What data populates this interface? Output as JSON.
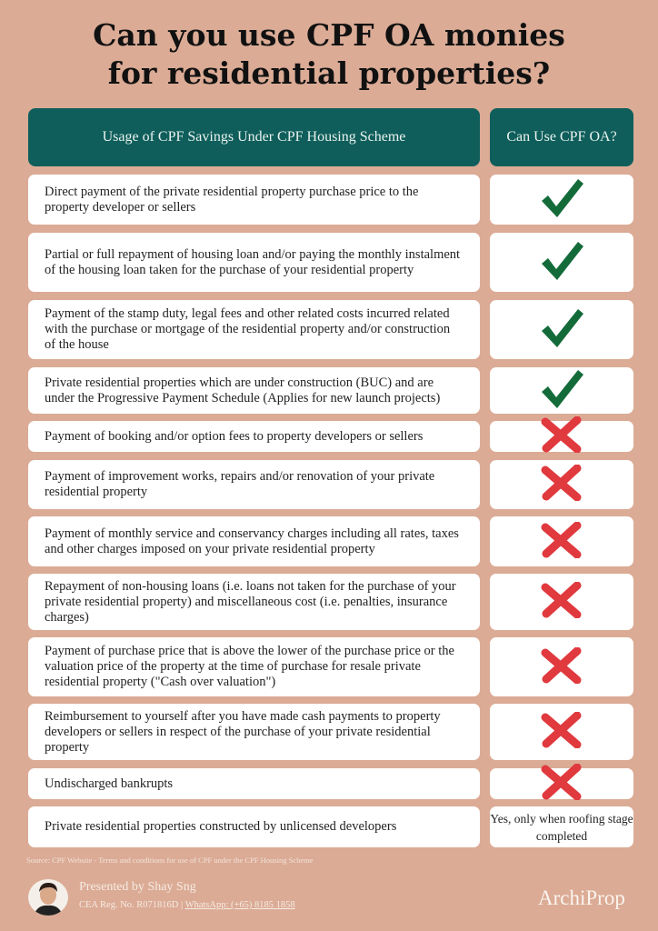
{
  "title_line1": "Can you use CPF OA monies",
  "title_line2": "for residential properties?",
  "header": {
    "col1": "Usage of CPF Savings Under CPF Housing Scheme",
    "col2": "Can Use CPF OA?"
  },
  "colors": {
    "background": "#dbab95",
    "header": "#0f5e5b",
    "check": "#146b3a",
    "cross": "#e0393e"
  },
  "rows": [
    {
      "text": "Direct payment of the private residential property purchase price to the property developer or sellers",
      "allowed": "check-icon"
    },
    {
      "text": "Partial or full repayment of housing loan and/or paying the monthly instalment of the housing loan taken for the purchase of your residential property",
      "allowed": "check-icon"
    },
    {
      "text": "Payment of the stamp duty, legal fees and other related costs incurred related with the purchase or mortgage of the residential property and/or construction of the house",
      "allowed": "check-icon"
    },
    {
      "text": "Private residential properties which are under construction (BUC) and are under the Progressive Payment Schedule (Applies for new launch projects)",
      "allowed": "check-icon"
    },
    {
      "text": "Payment of booking and/or option fees to property developers or sellers",
      "allowed": "cross-icon"
    },
    {
      "text": "Payment of improvement works, repairs and/or renovation of your private residential property",
      "allowed": "cross-icon"
    },
    {
      "text": "Payment of monthly service and conservancy charges including all rates, taxes and other charges imposed on your private residential property",
      "allowed": "cross-icon"
    },
    {
      "text": "Repayment of non-housing loans (i.e. loans not taken for the purchase of your private residential property) and miscellaneous cost (i.e. penalties, insurance charges)",
      "allowed": "cross-icon"
    },
    {
      "text": "Payment of purchase price that is above the lower of the purchase price or the valuation price of the property at the time of purchase for resale private residential property (\"Cash over valuation\")",
      "allowed": "cross-icon"
    },
    {
      "text": "Reimbursement to yourself after you have made cash payments to property developers or sellers in respect of the purchase of your private residential property",
      "allowed": "cross-icon"
    },
    {
      "text": "Undischarged bankrupts",
      "allowed": "cross-icon"
    },
    {
      "text": "Private residential properties constructed by unlicensed developers",
      "allowed": "text",
      "answer": "Yes, only when roofing stage completed"
    }
  ],
  "source": "Source: CPF Website - Terms and conditions for use of CPF under the CPF Housing Scheme",
  "footer": {
    "presented": "Presented by Shay Sng",
    "reg": "CEA Reg. No. R071816D",
    "separator": "|",
    "whatsapp": "WhatsApp: (+65) 8185 1858",
    "logo": "ArchiProp"
  }
}
